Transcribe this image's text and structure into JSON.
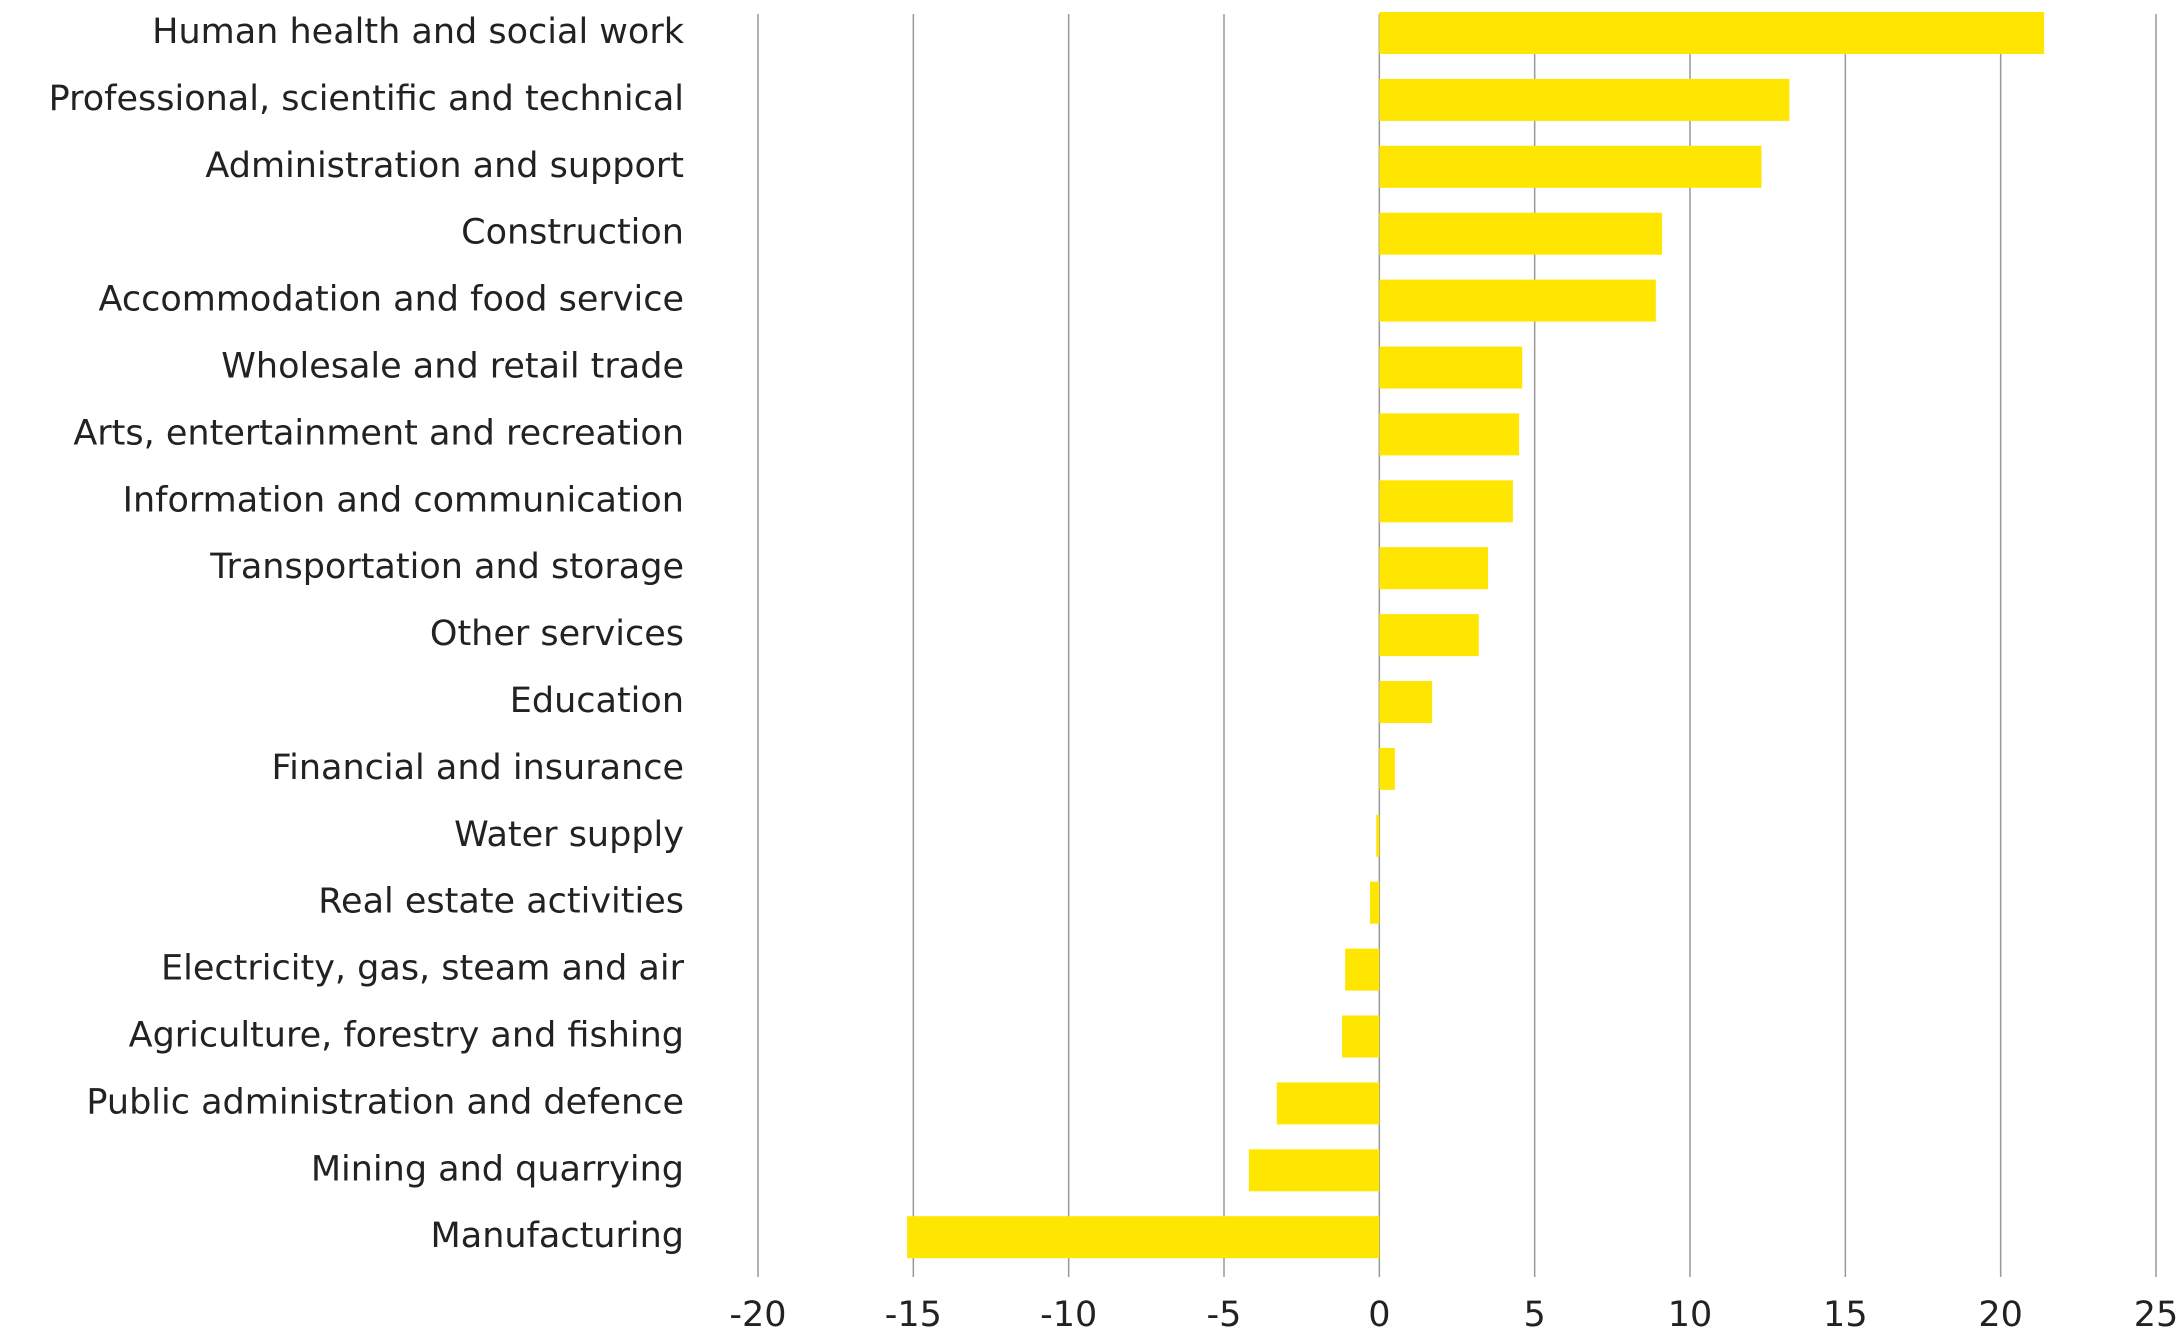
{
  "chart_data": {
    "type": "hbar",
    "categories": [
      "Human health and social work",
      "Professional, scientific and technical",
      "Administration and support",
      "Construction",
      "Accommodation and food service",
      "Wholesale and retail trade",
      "Arts, entertainment and recreation",
      "Information and communication",
      "Transportation and storage",
      "Other services",
      "Education",
      "Financial and insurance",
      "Water supply",
      "Real estate activities",
      "Electricity, gas, steam and air",
      "Agriculture, forestry and fishing",
      "Public administration and defence",
      "Mining and quarrying",
      "Manufacturing"
    ],
    "values": [
      21.4,
      13.2,
      12.3,
      9.1,
      8.9,
      4.6,
      4.5,
      4.3,
      3.5,
      3.2,
      1.7,
      0.5,
      -0.1,
      -0.3,
      -1.1,
      -1.2,
      -3.3,
      -4.2,
      -15.2
    ],
    "color": "#ffe600",
    "xlim": [
      -20,
      25
    ],
    "xticks": [
      -20,
      -15,
      -10,
      -5,
      0,
      5,
      10,
      15,
      20,
      25
    ],
    "grid": true
  }
}
